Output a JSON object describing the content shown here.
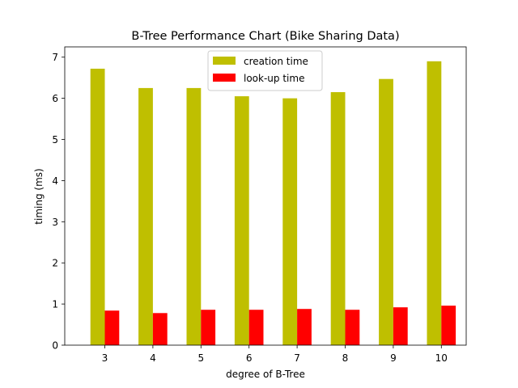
{
  "chart_data": {
    "type": "bar",
    "title": "B-Tree Performance Chart (Bike Sharing Data)",
    "xlabel": "degree of B-Tree",
    "ylabel": "timing (ms)",
    "categories": [
      "3",
      "4",
      "5",
      "6",
      "7",
      "8",
      "9",
      "10"
    ],
    "series": [
      {
        "name": "creation time",
        "color": "#bfbf00",
        "values": [
          6.72,
          6.25,
          6.25,
          6.05,
          6.0,
          6.15,
          6.47,
          6.9
        ]
      },
      {
        "name": "look-up time",
        "color": "#ff0000",
        "values": [
          0.84,
          0.78,
          0.86,
          0.86,
          0.88,
          0.86,
          0.92,
          0.96
        ]
      }
    ],
    "ylim": [
      0,
      7.25
    ],
    "yticks": [
      0,
      1,
      2,
      3,
      4,
      5,
      6,
      7
    ],
    "grid": false,
    "legend": "top-center"
  }
}
